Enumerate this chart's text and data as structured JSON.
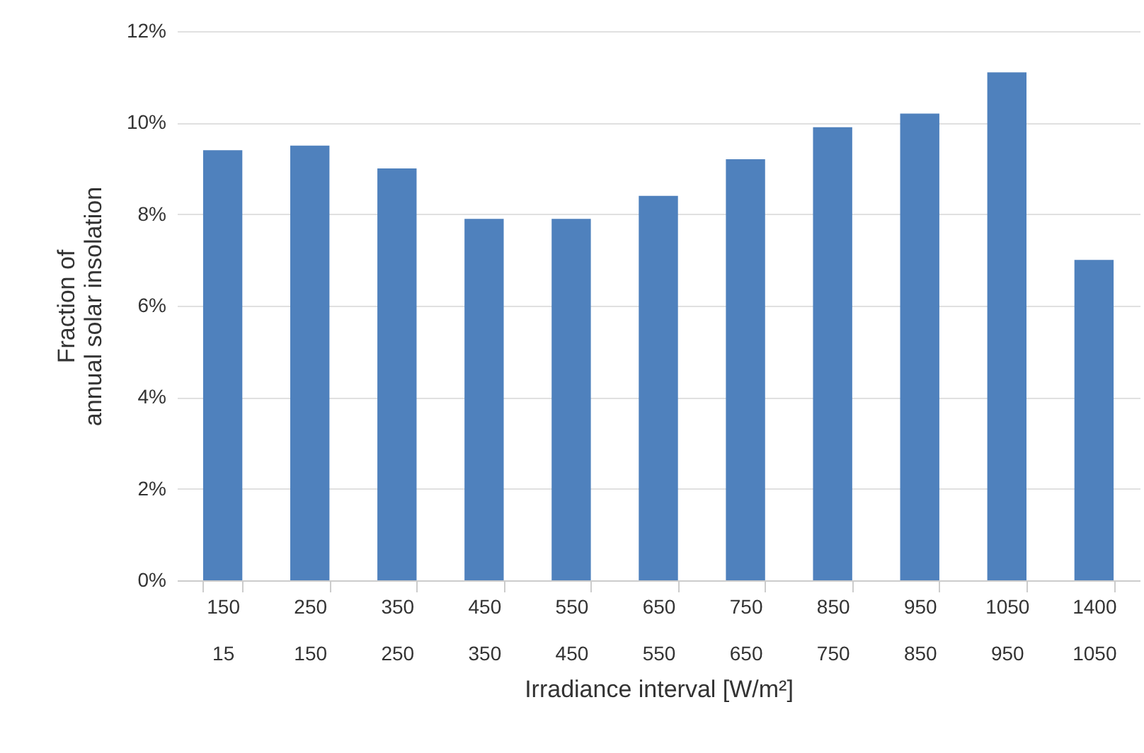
{
  "chart_data": {
    "type": "bar",
    "xlabel": "Irradiance interval [W/m²]",
    "ylabel": "Fraction of\nannual solar insolation",
    "categories": [
      "150\n15",
      "250\n150",
      "350\n250",
      "450\n350",
      "550\n450",
      "650\n550",
      "750\n650",
      "850\n750",
      "950\n850",
      "1050\n950",
      "1400\n1050"
    ],
    "values": [
      9.4,
      9.5,
      9.0,
      7.9,
      7.9,
      8.4,
      9.2,
      9.9,
      10.2,
      11.1,
      7.0
    ],
    "color": "#4f81bd",
    "ylim": [
      0,
      12
    ],
    "yticks": [
      {
        "value": 0,
        "label": "0%"
      },
      {
        "value": 2,
        "label": "2%"
      },
      {
        "value": 4,
        "label": "4%"
      },
      {
        "value": 6,
        "label": "6%"
      },
      {
        "value": 8,
        "label": "8%"
      },
      {
        "value": 10,
        "label": "10%"
      },
      {
        "value": 12,
        "label": "12%"
      }
    ],
    "grid": "y"
  }
}
